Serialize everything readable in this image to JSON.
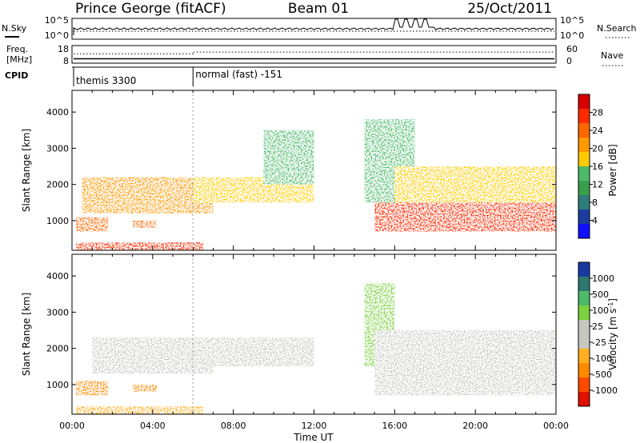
{
  "header": {
    "station": "Prince George (fitACF)",
    "beam": "Beam 01",
    "date": "25/Oct/2011"
  },
  "sky_panel": {
    "left_label": "N.Sky",
    "right_label": "N.Search",
    "left_ticks": [
      "10^5",
      "10^0"
    ],
    "right_ticks": [
      "10^5",
      "10^0"
    ]
  },
  "freq_panel": {
    "left_label_1": "Freq.",
    "left_label_2": "[MHz]",
    "right_label": "Nave",
    "left_ticks": [
      "18",
      "8"
    ],
    "right_ticks": [
      "60",
      "0"
    ],
    "freq_mhz": 10.5,
    "nave": 38
  },
  "cpid_panel": {
    "label": "CPID",
    "segments": [
      {
        "start_hour": 0,
        "label": "themis 3300"
      },
      {
        "start_hour": 6,
        "label": "normal (fast) -151"
      }
    ]
  },
  "power_panel": {
    "ylabel": "Slant Range [km]",
    "cbar_label": "Power [dB]",
    "cbar_ticks": [
      "28",
      "24",
      "20",
      "16",
      "12",
      "8",
      "4"
    ],
    "cbar_colors": [
      "#d80000",
      "#ff2a00",
      "#ff6600",
      "#ff9900",
      "#ffcc00",
      "#4dbb6a",
      "#38a04a",
      "#2f7c7c",
      "#1c3ca0",
      "#1010ff"
    ]
  },
  "velocity_panel": {
    "ylabel": "Slant Range [km]",
    "cbar_label": "Velocity  [m s",
    "cbar_label_sup": "-1",
    "cbar_label_end": "]",
    "cbar_ticks": [
      "1000",
      "500",
      "100",
      "25",
      "-25",
      "-100",
      "-500",
      "-1000"
    ],
    "cbar_colors": [
      "#1a3aa0",
      "#2e7870",
      "#4dbb6a",
      "#7dd040",
      "#c8c8c0",
      "#c8c8c0",
      "#ffb020",
      "#ff8a00",
      "#ff4a00",
      "#e01000"
    ]
  },
  "xaxis": {
    "label": "Time UT",
    "tick_labels": [
      "00:00",
      "04:00",
      "08:00",
      "12:00",
      "16:00",
      "20:00",
      "00:00"
    ]
  },
  "chart_data": [
    {
      "type": "heatmap",
      "title": "Power [dB]",
      "xlabel": "Time UT",
      "ylabel": "Slant Range [km]",
      "xlim": [
        0,
        24
      ],
      "ylim": [
        180,
        4600
      ],
      "yticks": [
        1000,
        2000,
        3000,
        4000
      ],
      "clim": [
        0,
        30
      ],
      "echo_bands": [
        {
          "x": [
            0.2,
            6.5
          ],
          "range_km": [
            180,
            400
          ],
          "power_db": 26
        },
        {
          "x": [
            0.2,
            1.8
          ],
          "range_km": [
            700,
            1100
          ],
          "power_db": 24
        },
        {
          "x": [
            3.0,
            4.2
          ],
          "range_km": [
            800,
            1000
          ],
          "power_db": 22
        },
        {
          "x": [
            0.5,
            7.0
          ],
          "range_km": [
            1200,
            2200
          ],
          "power_db": 20
        },
        {
          "x": [
            6.0,
            12.0
          ],
          "range_km": [
            1500,
            2200
          ],
          "power_db": 18
        },
        {
          "x": [
            9.5,
            12.0
          ],
          "range_km": [
            2000,
            3500
          ],
          "power_db": 12
        },
        {
          "x": [
            14.5,
            17.0
          ],
          "range_km": [
            1500,
            3800
          ],
          "power_db": 14
        },
        {
          "x": [
            15.0,
            24.0
          ],
          "range_km": [
            700,
            1500
          ],
          "power_db": 26
        },
        {
          "x": [
            16.0,
            24.0
          ],
          "range_km": [
            1500,
            2500
          ],
          "power_db": 16
        }
      ]
    },
    {
      "type": "heatmap",
      "title": "Velocity [m s-1]",
      "xlabel": "Time UT",
      "ylabel": "Slant Range [km]",
      "xlim": [
        0,
        24
      ],
      "ylim": [
        180,
        4600
      ],
      "yticks": [
        1000,
        2000,
        3000,
        4000
      ],
      "clim": [
        -1000,
        1000
      ],
      "echo_bands": [
        {
          "x": [
            0.2,
            6.5
          ],
          "range_km": [
            180,
            400
          ],
          "velocity_ms": -60
        },
        {
          "x": [
            0.2,
            1.8
          ],
          "range_km": [
            700,
            1100
          ],
          "velocity_ms": -300
        },
        {
          "x": [
            3.0,
            4.2
          ],
          "range_km": [
            800,
            1000
          ],
          "velocity_ms": -400
        },
        {
          "x": [
            1.0,
            7.0
          ],
          "range_km": [
            1300,
            2300
          ],
          "velocity_ms": 0
        },
        {
          "x": [
            6.0,
            12.0
          ],
          "range_km": [
            1500,
            2300
          ],
          "velocity_ms": 0
        },
        {
          "x": [
            14.5,
            16.0
          ],
          "range_km": [
            1500,
            3800
          ],
          "velocity_ms": 80
        },
        {
          "x": [
            15.0,
            24.0
          ],
          "range_km": [
            700,
            2500
          ],
          "velocity_ms": 0
        }
      ]
    }
  ]
}
